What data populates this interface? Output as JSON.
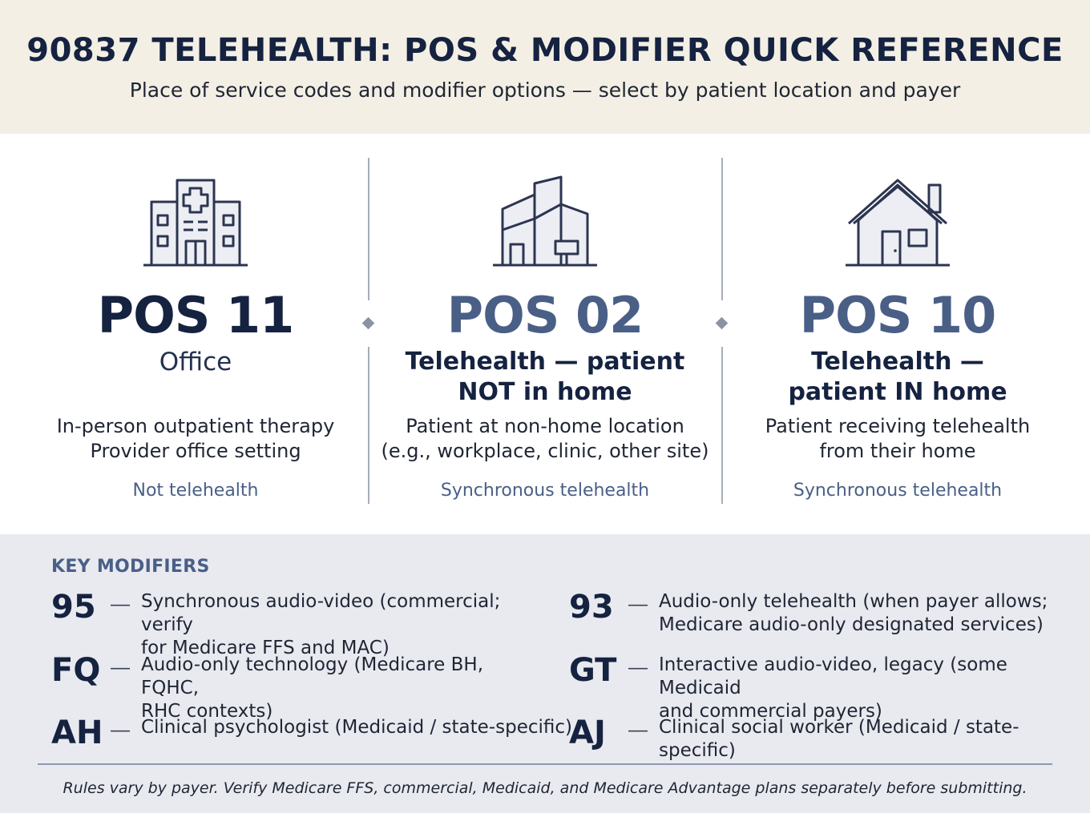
{
  "header": {
    "title": "90837 TELEHEALTH: POS & MODIFIER QUICK REFERENCE",
    "subtitle": "Place of service codes and modifier options — select by patient location and payer"
  },
  "pos": [
    {
      "icon": "hospital-icon",
      "code": "POS 11",
      "name": "Office",
      "desc_line1": "In-person outpatient therapy",
      "desc_line2": "Provider office setting",
      "note": "Not telehealth"
    },
    {
      "icon": "office-building-icon",
      "code": "POS 02",
      "name_line1": "Telehealth — patient",
      "name_line2": "NOT in home",
      "desc_line1": "Patient at non-home location",
      "desc_line2": "(e.g., workplace, clinic, other site)",
      "note": "Synchronous telehealth"
    },
    {
      "icon": "house-icon",
      "code": "POS 10",
      "name_line1": "Telehealth —",
      "name_line2": "patient IN home",
      "desc_line1": "Patient receiving telehealth",
      "desc_line2": "from their home",
      "note": "Synchronous telehealth"
    }
  ],
  "modifiers": {
    "heading": "KEY MODIFIERS",
    "items": [
      {
        "code": "95",
        "dash": "—",
        "line1": "Synchronous audio-video (commercial; verify",
        "line2": "for Medicare FFS and MAC)"
      },
      {
        "code": "93",
        "dash": "—",
        "line1": "Audio-only telehealth (when payer allows;",
        "line2": "Medicare audio-only designated services)"
      },
      {
        "code": "FQ",
        "dash": "—",
        "line1": "Audio-only technology (Medicare BH, FQHC,",
        "line2": "RHC contexts)"
      },
      {
        "code": "GT",
        "dash": "—",
        "line1": "Interactive audio-video, legacy (some Medicaid",
        "line2": "and commercial payers)"
      },
      {
        "code": "AH",
        "dash": "—",
        "line1": "Clinical psychologist (Medicaid / state-specific)",
        "line2": ""
      },
      {
        "code": "AJ",
        "dash": "—",
        "line1": "Clinical social worker (Medicaid / state-specific)",
        "line2": ""
      }
    ]
  },
  "footer": "Rules vary by payer. Verify Medicare FFS, commercial, Medicaid, and Medicare Advantage plans separately before submitting.",
  "colors": {
    "header_bg": "#f3efe4",
    "navy": "#152240",
    "slate_blue": "#4a5f86",
    "modifiers_bg": "#e8eaf0"
  }
}
